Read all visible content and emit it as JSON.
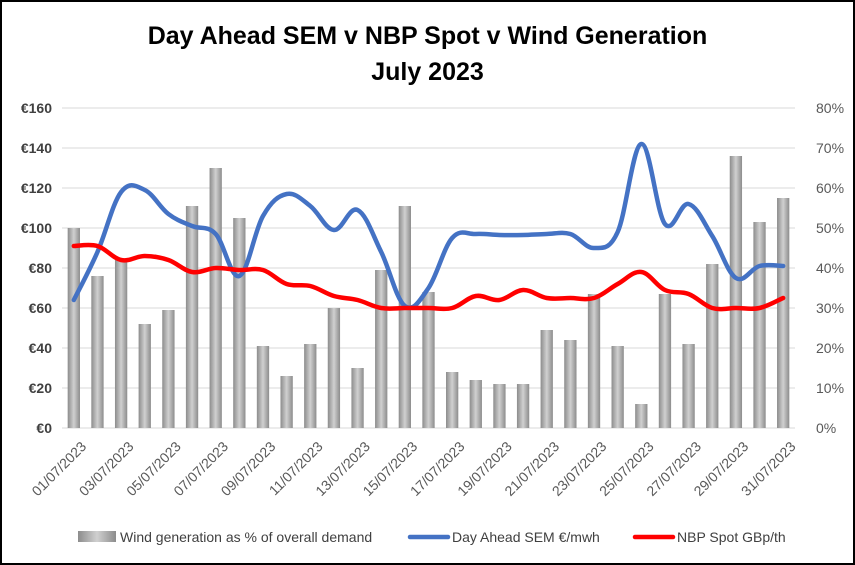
{
  "chart_data": {
    "type": "bar",
    "title": "Day Ahead SEM v NBP Spot v Wind Generation",
    "subtitle": "July 2023",
    "categories": [
      "01/07/2023",
      "02/07/2023",
      "03/07/2023",
      "04/07/2023",
      "05/07/2023",
      "06/07/2023",
      "07/07/2023",
      "08/07/2023",
      "09/07/2023",
      "10/07/2023",
      "11/07/2023",
      "12/07/2023",
      "13/07/2023",
      "14/07/2023",
      "15/07/2023",
      "16/07/2023",
      "17/07/2023",
      "18/07/2023",
      "19/07/2023",
      "20/07/2023",
      "21/07/2023",
      "22/07/2023",
      "23/07/2023",
      "24/07/2023",
      "25/07/2023",
      "26/07/2023",
      "27/07/2023",
      "28/07/2023",
      "29/07/2023",
      "30/07/2023",
      "31/07/2023"
    ],
    "x_tick_labels": [
      "01/07/2023",
      "03/07/2023",
      "05/07/2023",
      "07/07/2023",
      "09/07/2023",
      "11/07/2023",
      "13/07/2023",
      "15/07/2023",
      "17/07/2023",
      "19/07/2023",
      "21/07/2023",
      "23/07/2023",
      "25/07/2023",
      "27/07/2023",
      "29/07/2023",
      "31/07/2023"
    ],
    "y_left": {
      "min": 0,
      "max": 160,
      "ticks": [
        "€0",
        "€20",
        "€40",
        "€60",
        "€80",
        "€100",
        "€120",
        "€140",
        "€160"
      ]
    },
    "y_right": {
      "min": 0,
      "max": 80,
      "ticks": [
        "0%",
        "10%",
        "20%",
        "30%",
        "40%",
        "50%",
        "60%",
        "70%",
        "80%"
      ]
    },
    "grid": true,
    "legend_position": "bottom",
    "series": [
      {
        "name": "Wind generation as % of overall demand",
        "type": "bar",
        "axis": "right",
        "color": "#a6a6a6",
        "values": [
          50,
          38,
          42,
          26,
          29.5,
          55.5,
          65,
          52.5,
          20.5,
          13,
          21,
          30,
          15,
          39.5,
          55.5,
          34,
          14,
          12,
          11,
          11,
          24.5,
          22,
          33.5,
          20.5,
          6,
          33.5,
          21,
          41,
          68,
          51.5,
          57.5
        ]
      },
      {
        "name": "Day Ahead SEM €/mwh",
        "type": "line",
        "axis": "left",
        "color": "#4472c4",
        "values": [
          64,
          88,
          118,
          119,
          107,
          101,
          97,
          76,
          106,
          117,
          111,
          99,
          109,
          88,
          61,
          70,
          95,
          97,
          96.5,
          96.5,
          97,
          97,
          90,
          98,
          142,
          102,
          112,
          96,
          75,
          81,
          81
        ]
      },
      {
        "name": "NBP Spot GBp/th",
        "type": "line",
        "axis": "left",
        "color": "#ff0000",
        "values": [
          91,
          91,
          84,
          86,
          84,
          78,
          80,
          79,
          79,
          72,
          71,
          66,
          64,
          60,
          60,
          60,
          60,
          66,
          64,
          69,
          65,
          65,
          65,
          72,
          78,
          69,
          67,
          60,
          60,
          60,
          65
        ]
      }
    ]
  }
}
